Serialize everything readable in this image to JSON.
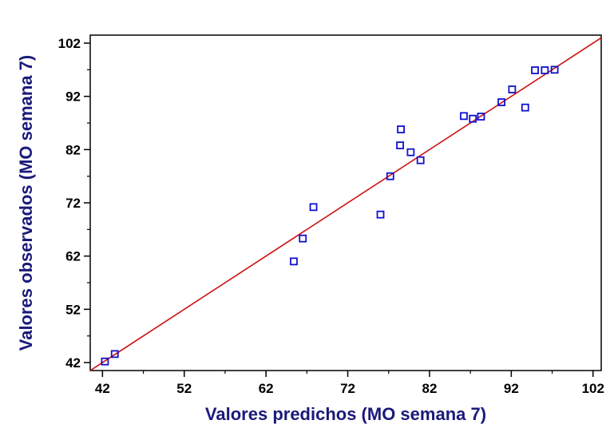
{
  "chart_data": {
    "type": "scatter",
    "title": "",
    "xlabel": "Valores predichos (MO semana 7)",
    "ylabel": "Valores observados (MO semana 7)",
    "xlim": [
      40.5,
      103
    ],
    "ylim": [
      40.5,
      103.5
    ],
    "xticks": [
      "42",
      "52",
      "62",
      "72",
      "82",
      "92",
      "102"
    ],
    "yticks": [
      "42",
      "52",
      "62",
      "72",
      "82",
      "92",
      "102"
    ],
    "grid": false,
    "legend": "none",
    "series": [
      {
        "values": [
          [
            42.3,
            42.2
          ],
          [
            43.5,
            43.6
          ],
          [
            65.4,
            61.0
          ],
          [
            66.5,
            65.3
          ],
          [
            67.8,
            71.2
          ],
          [
            76.0,
            69.8
          ],
          [
            77.2,
            77.0
          ],
          [
            78.4,
            82.8
          ],
          [
            78.5,
            85.8
          ],
          [
            79.7,
            81.5
          ],
          [
            80.9,
            80.0
          ],
          [
            86.2,
            88.3
          ],
          [
            87.3,
            87.8
          ],
          [
            88.3,
            88.2
          ],
          [
            90.8,
            90.9
          ],
          [
            92.1,
            93.3
          ],
          [
            93.7,
            89.9
          ],
          [
            94.9,
            96.9
          ],
          [
            96.1,
            96.9
          ],
          [
            97.3,
            97.0
          ]
        ]
      }
    ],
    "fit_line": {
      "x": [
        40.5,
        103
      ],
      "y": [
        40.5,
        103
      ]
    },
    "colors": {
      "points": "#1010d0",
      "line": "#cc1111",
      "axis_titles": "#1a1a7a",
      "frame": "#000000"
    }
  }
}
